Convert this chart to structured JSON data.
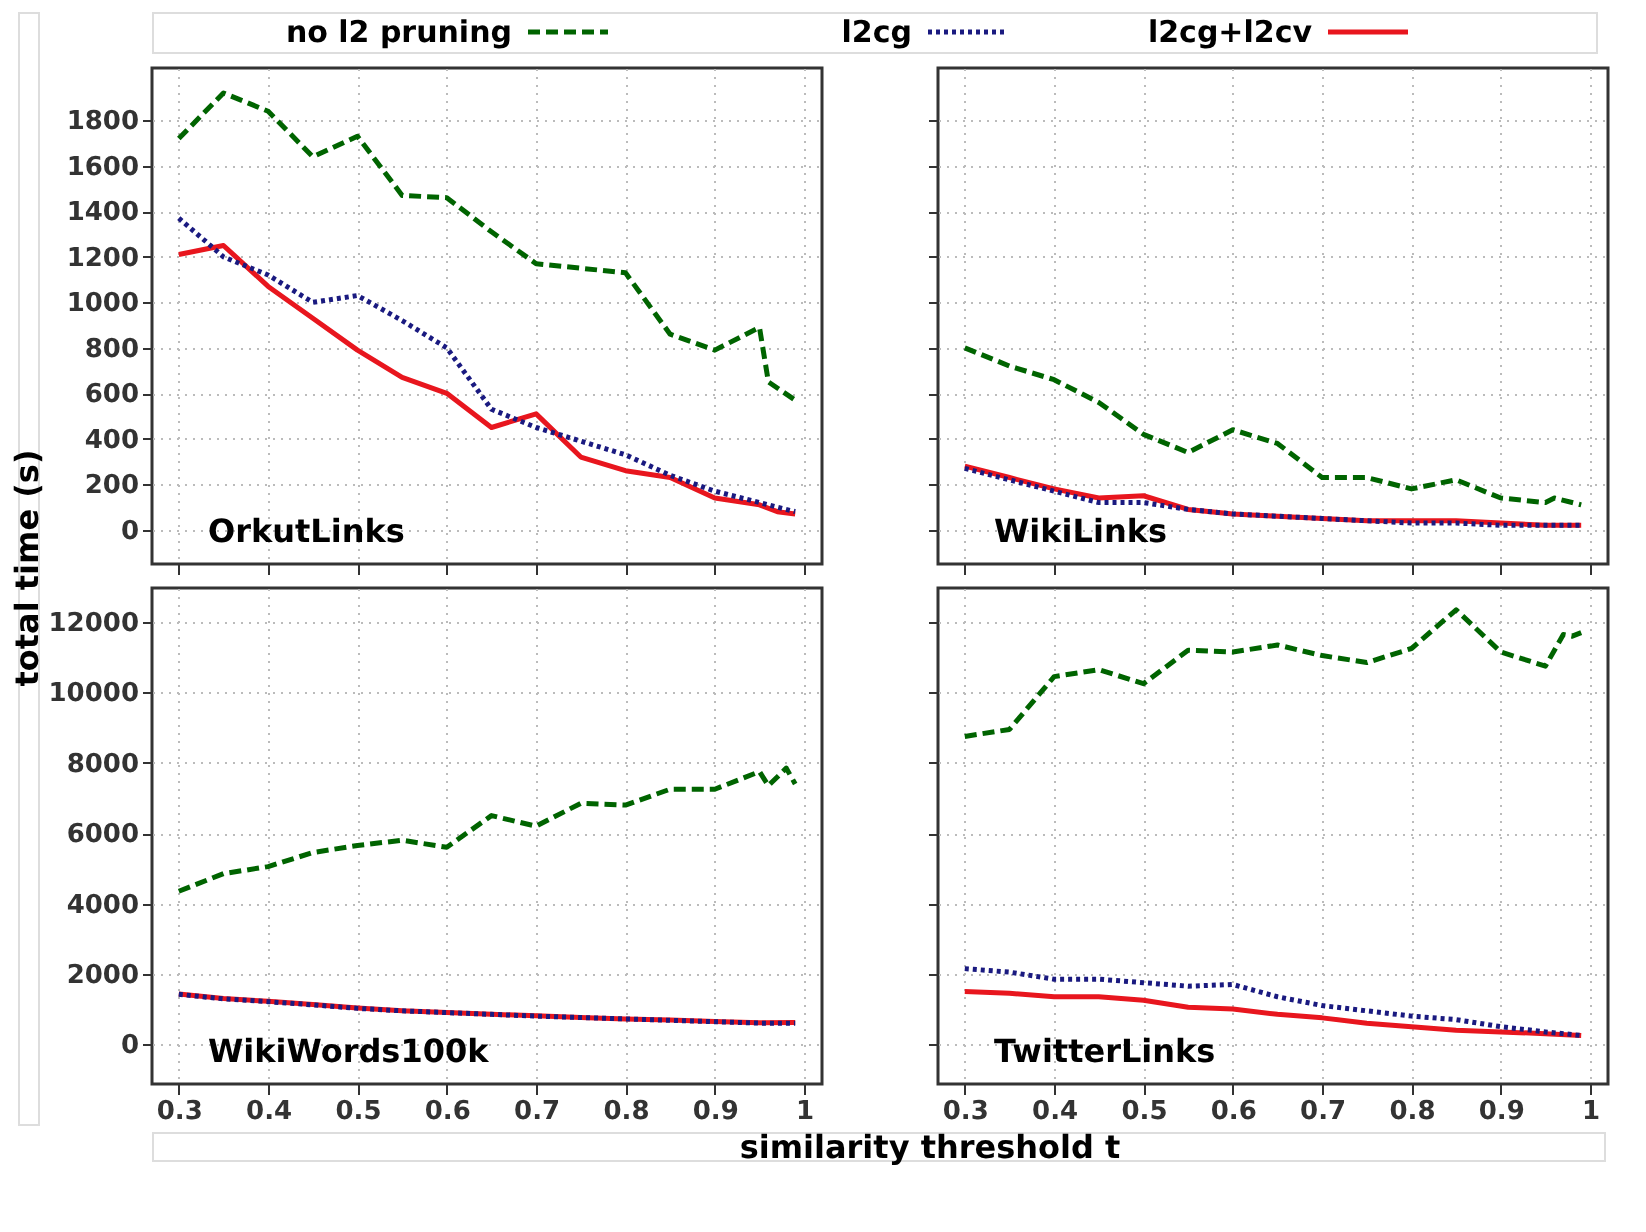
{
  "chart_data": [
    {
      "type": "line",
      "title": "OrkutLinks",
      "ylabel": "total time (s)",
      "legend": "top",
      "grid": true,
      "tick_labels": "y",
      "xlim": [
        0.27,
        1.02
      ],
      "xticks": [
        0.3,
        0.4,
        0.5,
        0.6,
        0.7,
        0.8,
        0.9,
        1
      ],
      "ylim": [
        -150,
        2030
      ],
      "yticks": [
        0,
        200,
        400,
        600,
        800,
        1000,
        1200,
        1400,
        1600,
        1800
      ],
      "series": [
        {
          "name": "no l2 pruning",
          "color": "#006400",
          "line_style": "dashed",
          "x": [
            0.3,
            0.35,
            0.4,
            0.45,
            0.5,
            0.55,
            0.6,
            0.65,
            0.7,
            0.75,
            0.8,
            0.85,
            0.9,
            0.95,
            0.96,
            0.99
          ],
          "values": [
            1720,
            1920,
            1840,
            1640,
            1730,
            1470,
            1460,
            1310,
            1170,
            1150,
            1130,
            860,
            790,
            890,
            650,
            570
          ]
        },
        {
          "name": "l2cg",
          "color": "#1a1a80",
          "line_style": "dotted",
          "x": [
            0.3,
            0.35,
            0.4,
            0.45,
            0.5,
            0.55,
            0.6,
            0.65,
            0.7,
            0.75,
            0.8,
            0.85,
            0.9,
            0.95,
            0.99
          ],
          "values": [
            1370,
            1200,
            1120,
            1000,
            1030,
            920,
            800,
            530,
            450,
            390,
            330,
            240,
            170,
            120,
            80
          ]
        },
        {
          "name": "l2cg+l2cv",
          "color": "#e8161e",
          "line_style": "solid",
          "x": [
            0.3,
            0.35,
            0.4,
            0.45,
            0.5,
            0.55,
            0.6,
            0.65,
            0.7,
            0.75,
            0.8,
            0.85,
            0.9,
            0.95,
            0.97,
            0.99
          ],
          "values": [
            1210,
            1250,
            1070,
            930,
            790,
            670,
            600,
            450,
            510,
            320,
            260,
            230,
            140,
            110,
            80,
            70
          ]
        }
      ]
    },
    {
      "type": "line",
      "title": "WikiLinks",
      "grid": true,
      "tick_labels": false,
      "xlim": [
        0.27,
        1.02
      ],
      "xticks": [
        0.3,
        0.4,
        0.5,
        0.6,
        0.7,
        0.8,
        0.9,
        1
      ],
      "ylim": [
        -150,
        2030
      ],
      "yticks": [
        0,
        200,
        400,
        600,
        800,
        1000,
        1200,
        1400,
        1600,
        1800
      ],
      "series": [
        {
          "color": "#006400",
          "line_style": "dashed",
          "x": [
            0.3,
            0.35,
            0.4,
            0.45,
            0.5,
            0.55,
            0.6,
            0.65,
            0.7,
            0.75,
            0.8,
            0.85,
            0.9,
            0.95,
            0.96,
            0.99
          ],
          "values": [
            800,
            720,
            660,
            560,
            420,
            340,
            440,
            380,
            230,
            230,
            180,
            220,
            140,
            120,
            140,
            110
          ]
        },
        {
          "color": "#1a1a80",
          "line_style": "dotted",
          "x": [
            0.3,
            0.35,
            0.4,
            0.45,
            0.5,
            0.55,
            0.6,
            0.65,
            0.7,
            0.75,
            0.8,
            0.85,
            0.9,
            0.95,
            0.99
          ],
          "values": [
            270,
            220,
            170,
            120,
            120,
            90,
            70,
            60,
            50,
            40,
            30,
            30,
            20,
            20,
            20
          ]
        },
        {
          "color": "#e8161e",
          "line_style": "solid",
          "x": [
            0.3,
            0.35,
            0.4,
            0.45,
            0.5,
            0.55,
            0.6,
            0.65,
            0.7,
            0.75,
            0.8,
            0.85,
            0.9,
            0.95,
            0.99
          ],
          "values": [
            280,
            230,
            180,
            140,
            150,
            90,
            70,
            60,
            50,
            40,
            40,
            40,
            30,
            20,
            20
          ]
        }
      ]
    },
    {
      "type": "line",
      "title": "WikiWords100k",
      "xlabel": "similarity threshold t",
      "grid": true,
      "xlim": [
        0.27,
        1.02
      ],
      "xticks": [
        0.3,
        0.4,
        0.5,
        0.6,
        0.7,
        0.8,
        0.9,
        1
      ],
      "ylim": [
        -1130,
        12970
      ],
      "yticks": [
        0,
        2000,
        4000,
        6000,
        8000,
        10000,
        12000
      ],
      "series": [
        {
          "color": "#006400",
          "line_style": "dashed",
          "x": [
            0.3,
            0.35,
            0.4,
            0.45,
            0.5,
            0.55,
            0.6,
            0.65,
            0.7,
            0.75,
            0.8,
            0.85,
            0.9,
            0.95,
            0.96,
            0.98,
            0.99
          ],
          "values": [
            4350,
            4850,
            5050,
            5450,
            5650,
            5800,
            5600,
            6500,
            6200,
            6850,
            6800,
            7250,
            7250,
            7750,
            7350,
            7850,
            7400
          ]
        },
        {
          "color": "#1a1a80",
          "line_style": "dotted",
          "x": [
            0.3,
            0.35,
            0.4,
            0.45,
            0.5,
            0.55,
            0.6,
            0.65,
            0.7,
            0.75,
            0.8,
            0.85,
            0.9,
            0.95,
            0.99
          ],
          "values": [
            1420,
            1290,
            1210,
            1120,
            1020,
            950,
            900,
            850,
            800,
            760,
            720,
            680,
            640,
            600,
            600
          ]
        },
        {
          "color": "#e8161e",
          "line_style": "solid",
          "x": [
            0.3,
            0.35,
            0.4,
            0.45,
            0.5,
            0.55,
            0.6,
            0.65,
            0.7,
            0.75,
            0.8,
            0.85,
            0.9,
            0.95,
            0.99
          ],
          "values": [
            1430,
            1300,
            1220,
            1130,
            1030,
            950,
            900,
            850,
            810,
            760,
            720,
            690,
            650,
            610,
            620
          ]
        }
      ]
    },
    {
      "type": "line",
      "title": "TwitterLinks",
      "grid": true,
      "tick_labels": "x",
      "xlim": [
        0.27,
        1.02
      ],
      "xticks": [
        0.3,
        0.4,
        0.5,
        0.6,
        0.7,
        0.8,
        0.9,
        1
      ],
      "ylim": [
        -1130,
        12970
      ],
      "yticks": [
        0,
        2000,
        4000,
        6000,
        8000,
        10000,
        12000
      ],
      "series": [
        {
          "color": "#006400",
          "line_style": "dashed",
          "x": [
            0.3,
            0.35,
            0.4,
            0.45,
            0.5,
            0.55,
            0.6,
            0.65,
            0.7,
            0.75,
            0.8,
            0.85,
            0.9,
            0.95,
            0.97,
            0.98,
            0.99
          ],
          "values": [
            8750,
            8950,
            10450,
            10650,
            10250,
            11200,
            11150,
            11350,
            11050,
            10850,
            11250,
            12350,
            11150,
            10750,
            11650,
            11600,
            11700
          ]
        },
        {
          "color": "#1a1a80",
          "line_style": "dotted",
          "x": [
            0.3,
            0.35,
            0.4,
            0.45,
            0.5,
            0.55,
            0.6,
            0.65,
            0.7,
            0.75,
            0.8,
            0.85,
            0.9,
            0.95,
            0.99
          ],
          "values": [
            2150,
            2050,
            1850,
            1850,
            1750,
            1650,
            1700,
            1350,
            1100,
            950,
            800,
            700,
            500,
            350,
            250
          ]
        },
        {
          "color": "#e8161e",
          "line_style": "solid",
          "x": [
            0.3,
            0.35,
            0.4,
            0.45,
            0.5,
            0.55,
            0.6,
            0.65,
            0.7,
            0.75,
            0.8,
            0.85,
            0.9,
            0.95,
            0.99
          ],
          "values": [
            1500,
            1450,
            1350,
            1350,
            1250,
            1050,
            1000,
            850,
            750,
            600,
            500,
            400,
            350,
            300,
            250
          ]
        }
      ]
    }
  ]
}
